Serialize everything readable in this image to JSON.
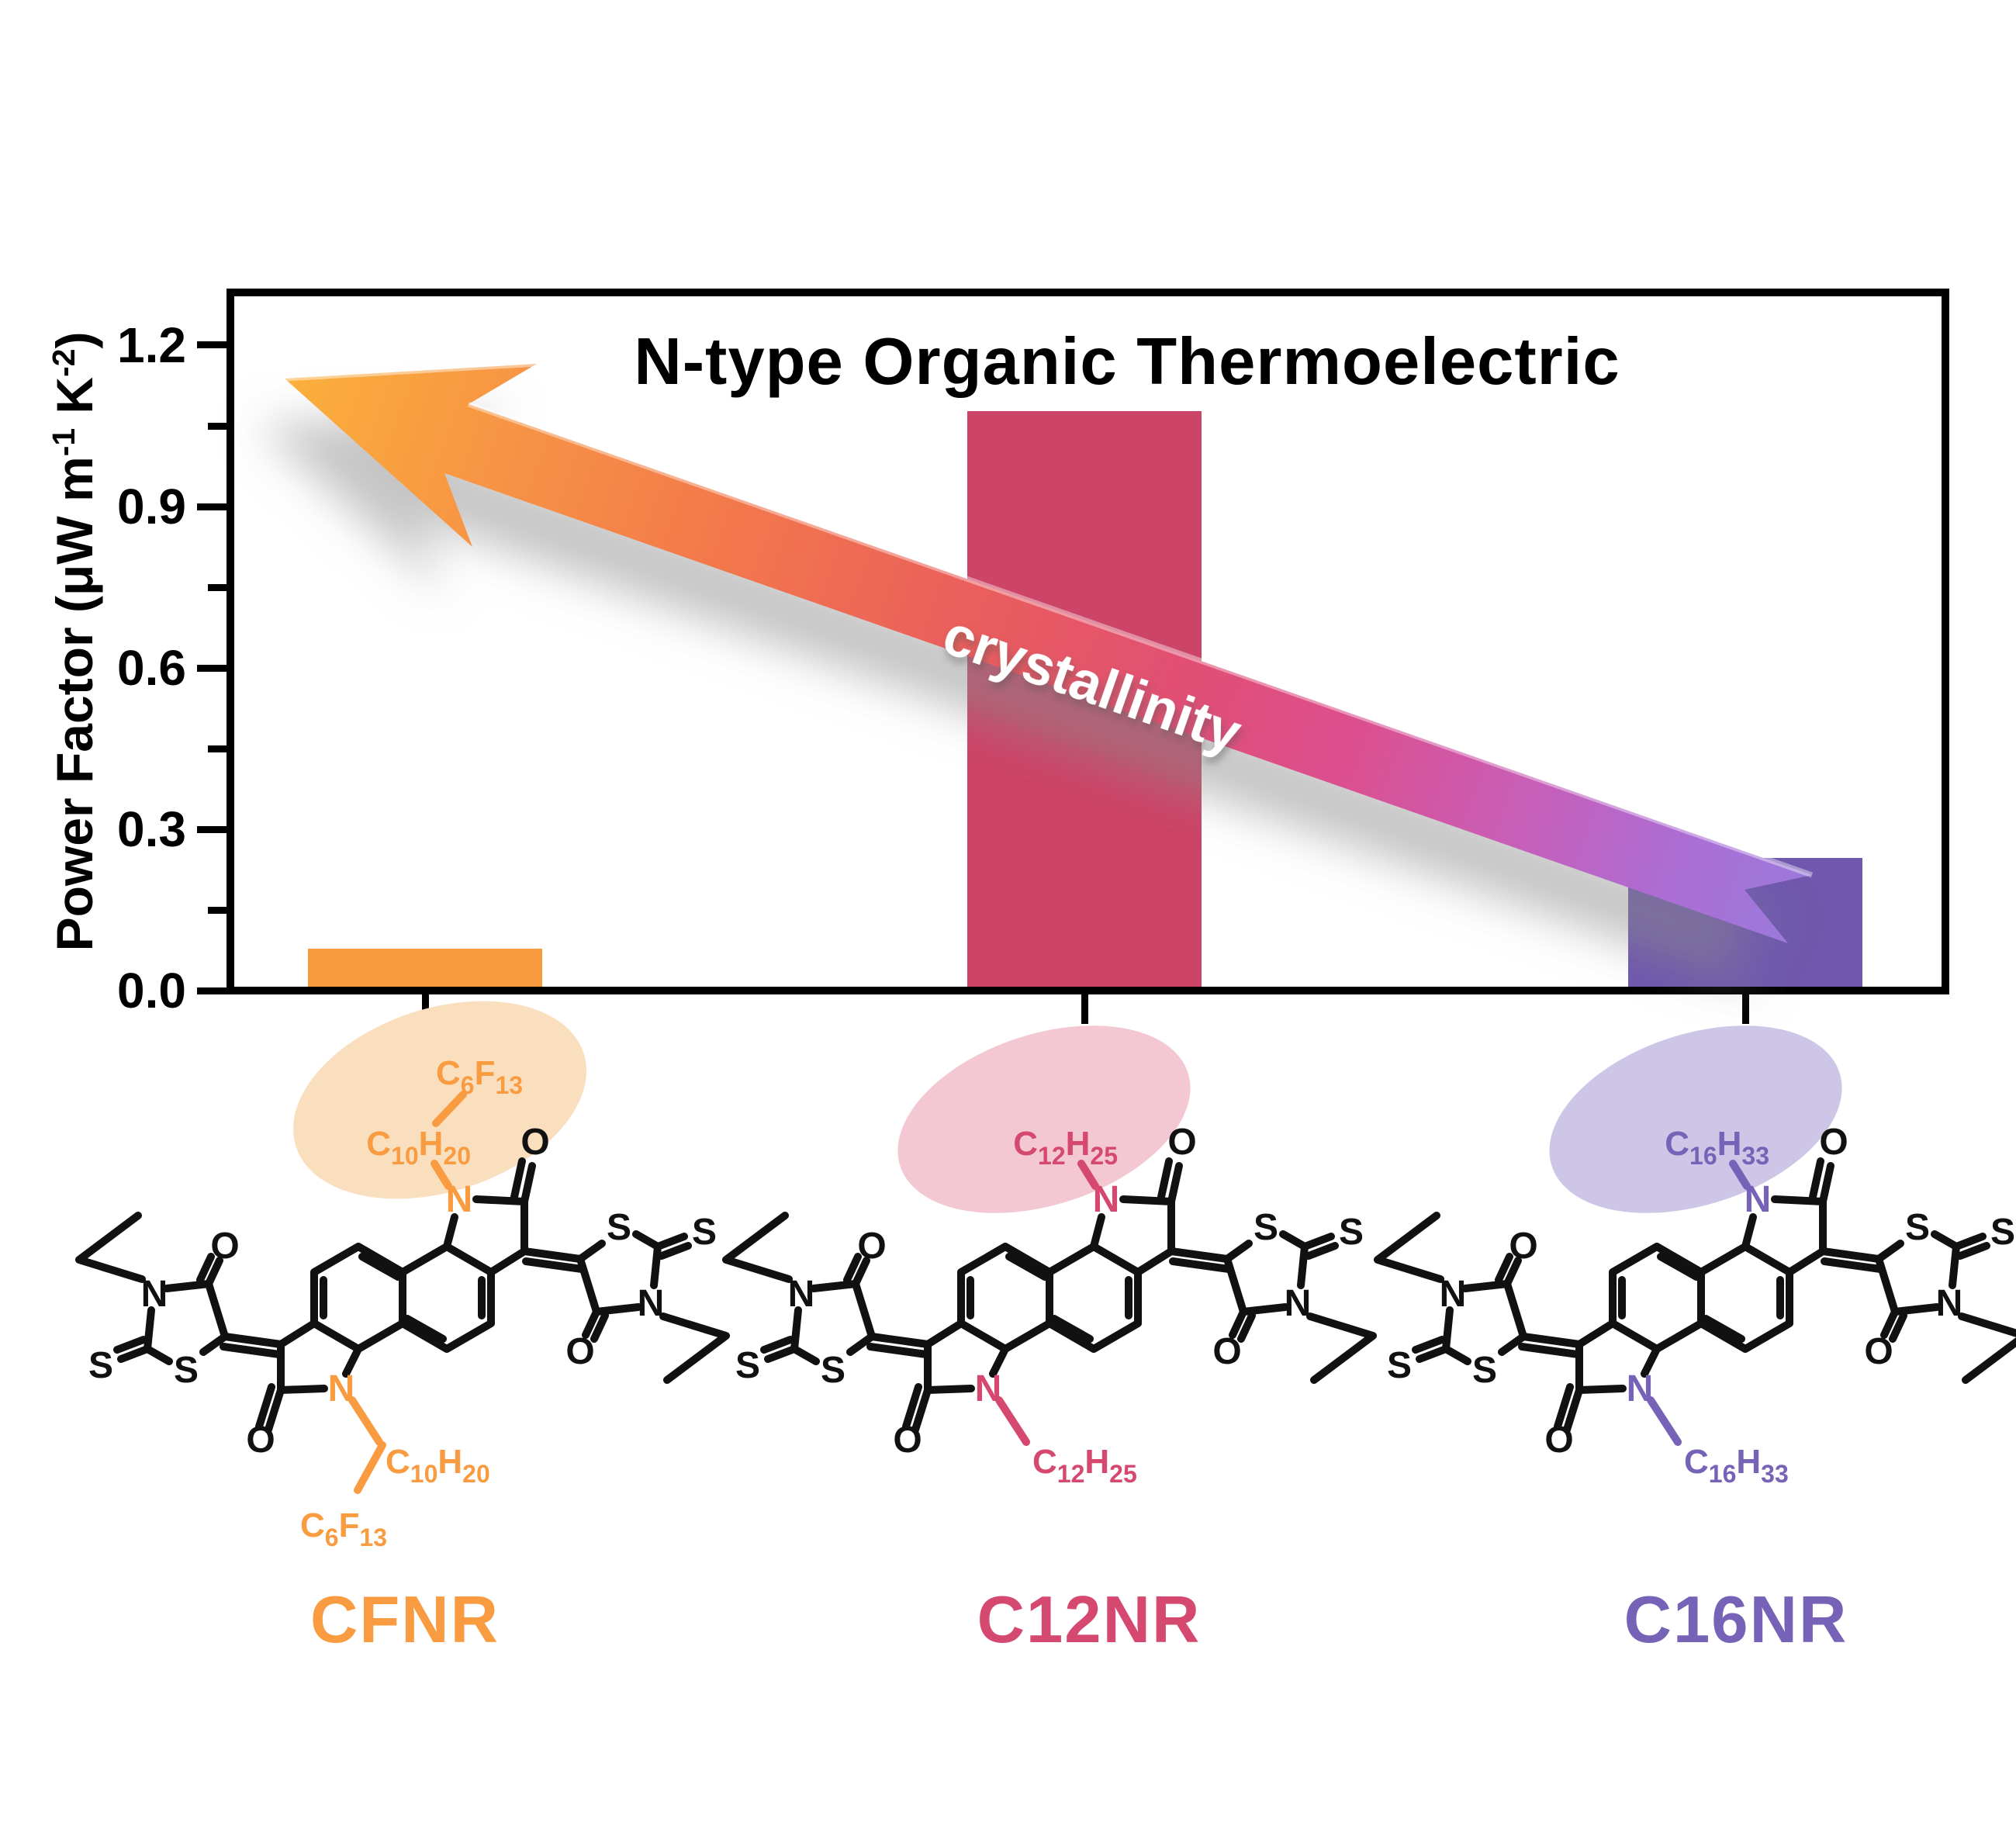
{
  "chart_data": {
    "type": "bar",
    "title": "N-type Organic Thermoelectric",
    "categories": [
      "CFNR",
      "C12NR",
      "C16NR"
    ],
    "values": [
      0.07,
      1.07,
      0.24
    ],
    "bar_colors": [
      "#F9993E",
      "#CC4468",
      "#6F58AD"
    ],
    "xlabel": "",
    "ylabel": "Power Factor (μW m-1 K-2)",
    "ylim": [
      0.0,
      1.32
    ],
    "yticks": [
      0.0,
      0.3,
      0.6,
      0.9,
      1.2
    ],
    "ytick_labels": [
      "1.2",
      "0.9",
      "0.6",
      "0.3",
      "0.0"
    ],
    "minor_yticks": [
      0.15,
      0.45,
      0.75,
      1.05
    ],
    "grid": false,
    "legend": null,
    "annotation": {
      "type": "gradient-arrow",
      "label": "crystallinity",
      "direction": "pointing upper-left (higher power factor with higher crystallinity)",
      "gradient": [
        "#FBB03B",
        "#F89C42",
        "#F37A4B",
        "#EA5E5C",
        "#E25072",
        "#DC4F8E",
        "#C75FB9",
        "#9C79DC"
      ]
    }
  },
  "y_axis": {
    "parts": {
      "p1": "Power Factor (μW m",
      "s1": "-1",
      "p2": " K",
      "s2": "-2",
      "p3": ")"
    }
  },
  "atoms": {
    "sulfur": "S",
    "oxygen": "O",
    "nitrogen": "N"
  },
  "molecules": [
    {
      "name": "CFNR",
      "color": "#F9993E",
      "highlight_color": "#FADFBE",
      "chains": {
        "top1": {
          "p1": "C",
          "sub1": "10",
          "p2": "H",
          "sub2": "20"
        },
        "top2": {
          "p1": "C",
          "sub1": "6",
          "p2": "F",
          "sub2": "13"
        },
        "bottom1": {
          "p1": "C",
          "sub1": "10",
          "p2": "H",
          "sub2": "20"
        },
        "bottom2": {
          "p1": "C",
          "sub1": "6",
          "p2": "F",
          "sub2": "13"
        }
      }
    },
    {
      "name": "C12NR",
      "color": "#CC4468",
      "highlight_color": "#F3C8D3",
      "chains": {
        "top1": {
          "p1": "C",
          "sub1": "12",
          "p2": "H",
          "sub2": "25"
        },
        "bottom1": {
          "p1": "C",
          "sub1": "12",
          "p2": "H",
          "sub2": "25"
        }
      }
    },
    {
      "name": "C16NR",
      "color": "#6F58AD",
      "highlight_color": "#CDC6E6",
      "chains": {
        "top1": {
          "p1": "C",
          "sub1": "16",
          "p2": "H",
          "sub2": "33"
        },
        "bottom1": {
          "p1": "C",
          "sub1": "16",
          "p2": "H",
          "sub2": "33"
        }
      }
    }
  ]
}
